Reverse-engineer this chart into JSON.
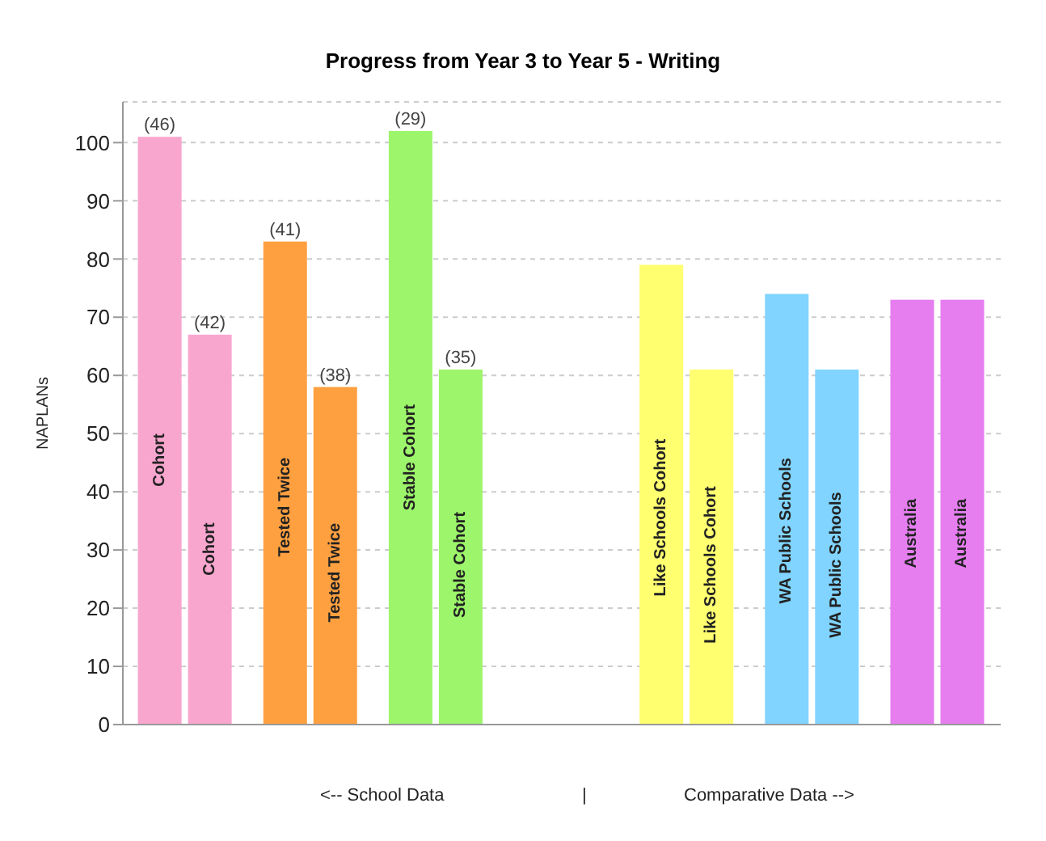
{
  "chart_data": {
    "type": "bar",
    "title": "Progress from Year 3 to Year 5 - Writing",
    "ylabel": "NAPLANs",
    "categories": [
      "Cohort",
      "Tested Twice",
      "Stable Cohort",
      null,
      "Like Schools Cohort",
      "WA Public Schools",
      "Australia"
    ],
    "series": [
      {
        "colors": [
          "#f9a6cf",
          "#ffa040",
          "#9cf56a",
          "#ffffff",
          "#ffff70",
          "#80d4ff",
          "#e67ef0"
        ],
        "values": [
          101,
          83,
          102,
          null,
          79,
          74,
          73
        ]
      },
      {
        "colors": [
          "#f9a6cf",
          "#ffa040",
          "#9cf56a",
          "#ffffff",
          "#ffff70",
          "#80d4ff",
          "#e67ef0"
        ],
        "values": [
          67,
          58,
          61,
          null,
          61,
          61,
          73
        ]
      }
    ],
    "ylim": [
      0,
      107
    ],
    "yticks": [
      0,
      10,
      20,
      30,
      40,
      50,
      60,
      70,
      80,
      90,
      100
    ],
    "grid": "y",
    "tick_labels": "y",
    "legend": false,
    "annotations": [
      "(46)",
      "(42)",
      "(41)",
      "(38)",
      "(29)",
      "(35)",
      "<--  School Data",
      "|",
      "Comparative Data  -->"
    ]
  }
}
